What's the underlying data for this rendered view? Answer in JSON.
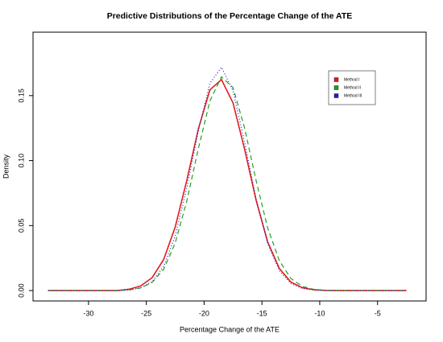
{
  "chart_data": {
    "type": "line",
    "title": "Predictive Distributions of the Percentage Change of the ATE",
    "x_label": "Percentage Change of the ATE",
    "y_label": "Density",
    "x": [
      -33.5,
      -32.5,
      -31.5,
      -30.5,
      -29.5,
      -28.5,
      -27.5,
      -26.5,
      -25.5,
      -24.5,
      -23.5,
      -22.5,
      -21.5,
      -20.5,
      -19.5,
      -18.5,
      -17.5,
      -16.5,
      -15.5,
      -14.5,
      -13.5,
      -12.5,
      -11.5,
      -10.5,
      -9.5,
      -8.5,
      -7.5,
      -6.5,
      -5.5,
      -4.5,
      -3.5,
      -2.5
    ],
    "series": [
      {
        "name": "Method I",
        "color": "#e41a1c",
        "dash": "solid",
        "values": [
          0,
          0,
          0,
          0,
          0,
          0,
          0,
          0.001,
          0.0035,
          0.0099,
          0.0239,
          0.0489,
          0.0847,
          0.1243,
          0.1544,
          0.1623,
          0.1444,
          0.1088,
          0.0694,
          0.0374,
          0.0171,
          0.0066,
          0.0022,
          0.0006,
          0.0001,
          0,
          0,
          0,
          0,
          0,
          0,
          0
        ]
      },
      {
        "name": "Method II",
        "color": "#1fa21f",
        "dash": "dashed",
        "values": [
          0,
          0,
          0,
          0,
          0,
          0,
          0,
          0.0005,
          0.002,
          0.0062,
          0.0164,
          0.0366,
          0.0688,
          0.1092,
          0.1459,
          0.1644,
          0.1562,
          0.1251,
          0.0845,
          0.0481,
          0.0231,
          0.0093,
          0.0032,
          0.0009,
          0.0002,
          0,
          0,
          0,
          0,
          0,
          0,
          0
        ]
      },
      {
        "name": "Method III",
        "color": "#1f1fc8",
        "dash": "dotted",
        "values": [
          0,
          0,
          0,
          0,
          0,
          0,
          0,
          0.0005,
          0.0021,
          0.0068,
          0.0185,
          0.0418,
          0.0788,
          0.123,
          0.1595,
          0.1718,
          0.1537,
          0.1142,
          0.0704,
          0.0361,
          0.0153,
          0.0054,
          0.0016,
          0.0004,
          0.0001,
          0,
          0,
          0,
          0,
          0,
          0,
          0
        ]
      }
    ],
    "xlim": [
      -34.8,
      -0.8
    ],
    "ylim": [
      -0.008,
      0.1988
    ],
    "xticks": [
      -30,
      -25,
      -20,
      -15,
      -10,
      -5
    ],
    "yticks": [
      {
        "value": 0,
        "label": "0.00"
      },
      {
        "value": 0.05,
        "label": "0.05"
      },
      {
        "value": 0.1,
        "label": "0.10"
      },
      {
        "value": 0.15,
        "label": "0.15"
      }
    ],
    "legend": "topright"
  }
}
